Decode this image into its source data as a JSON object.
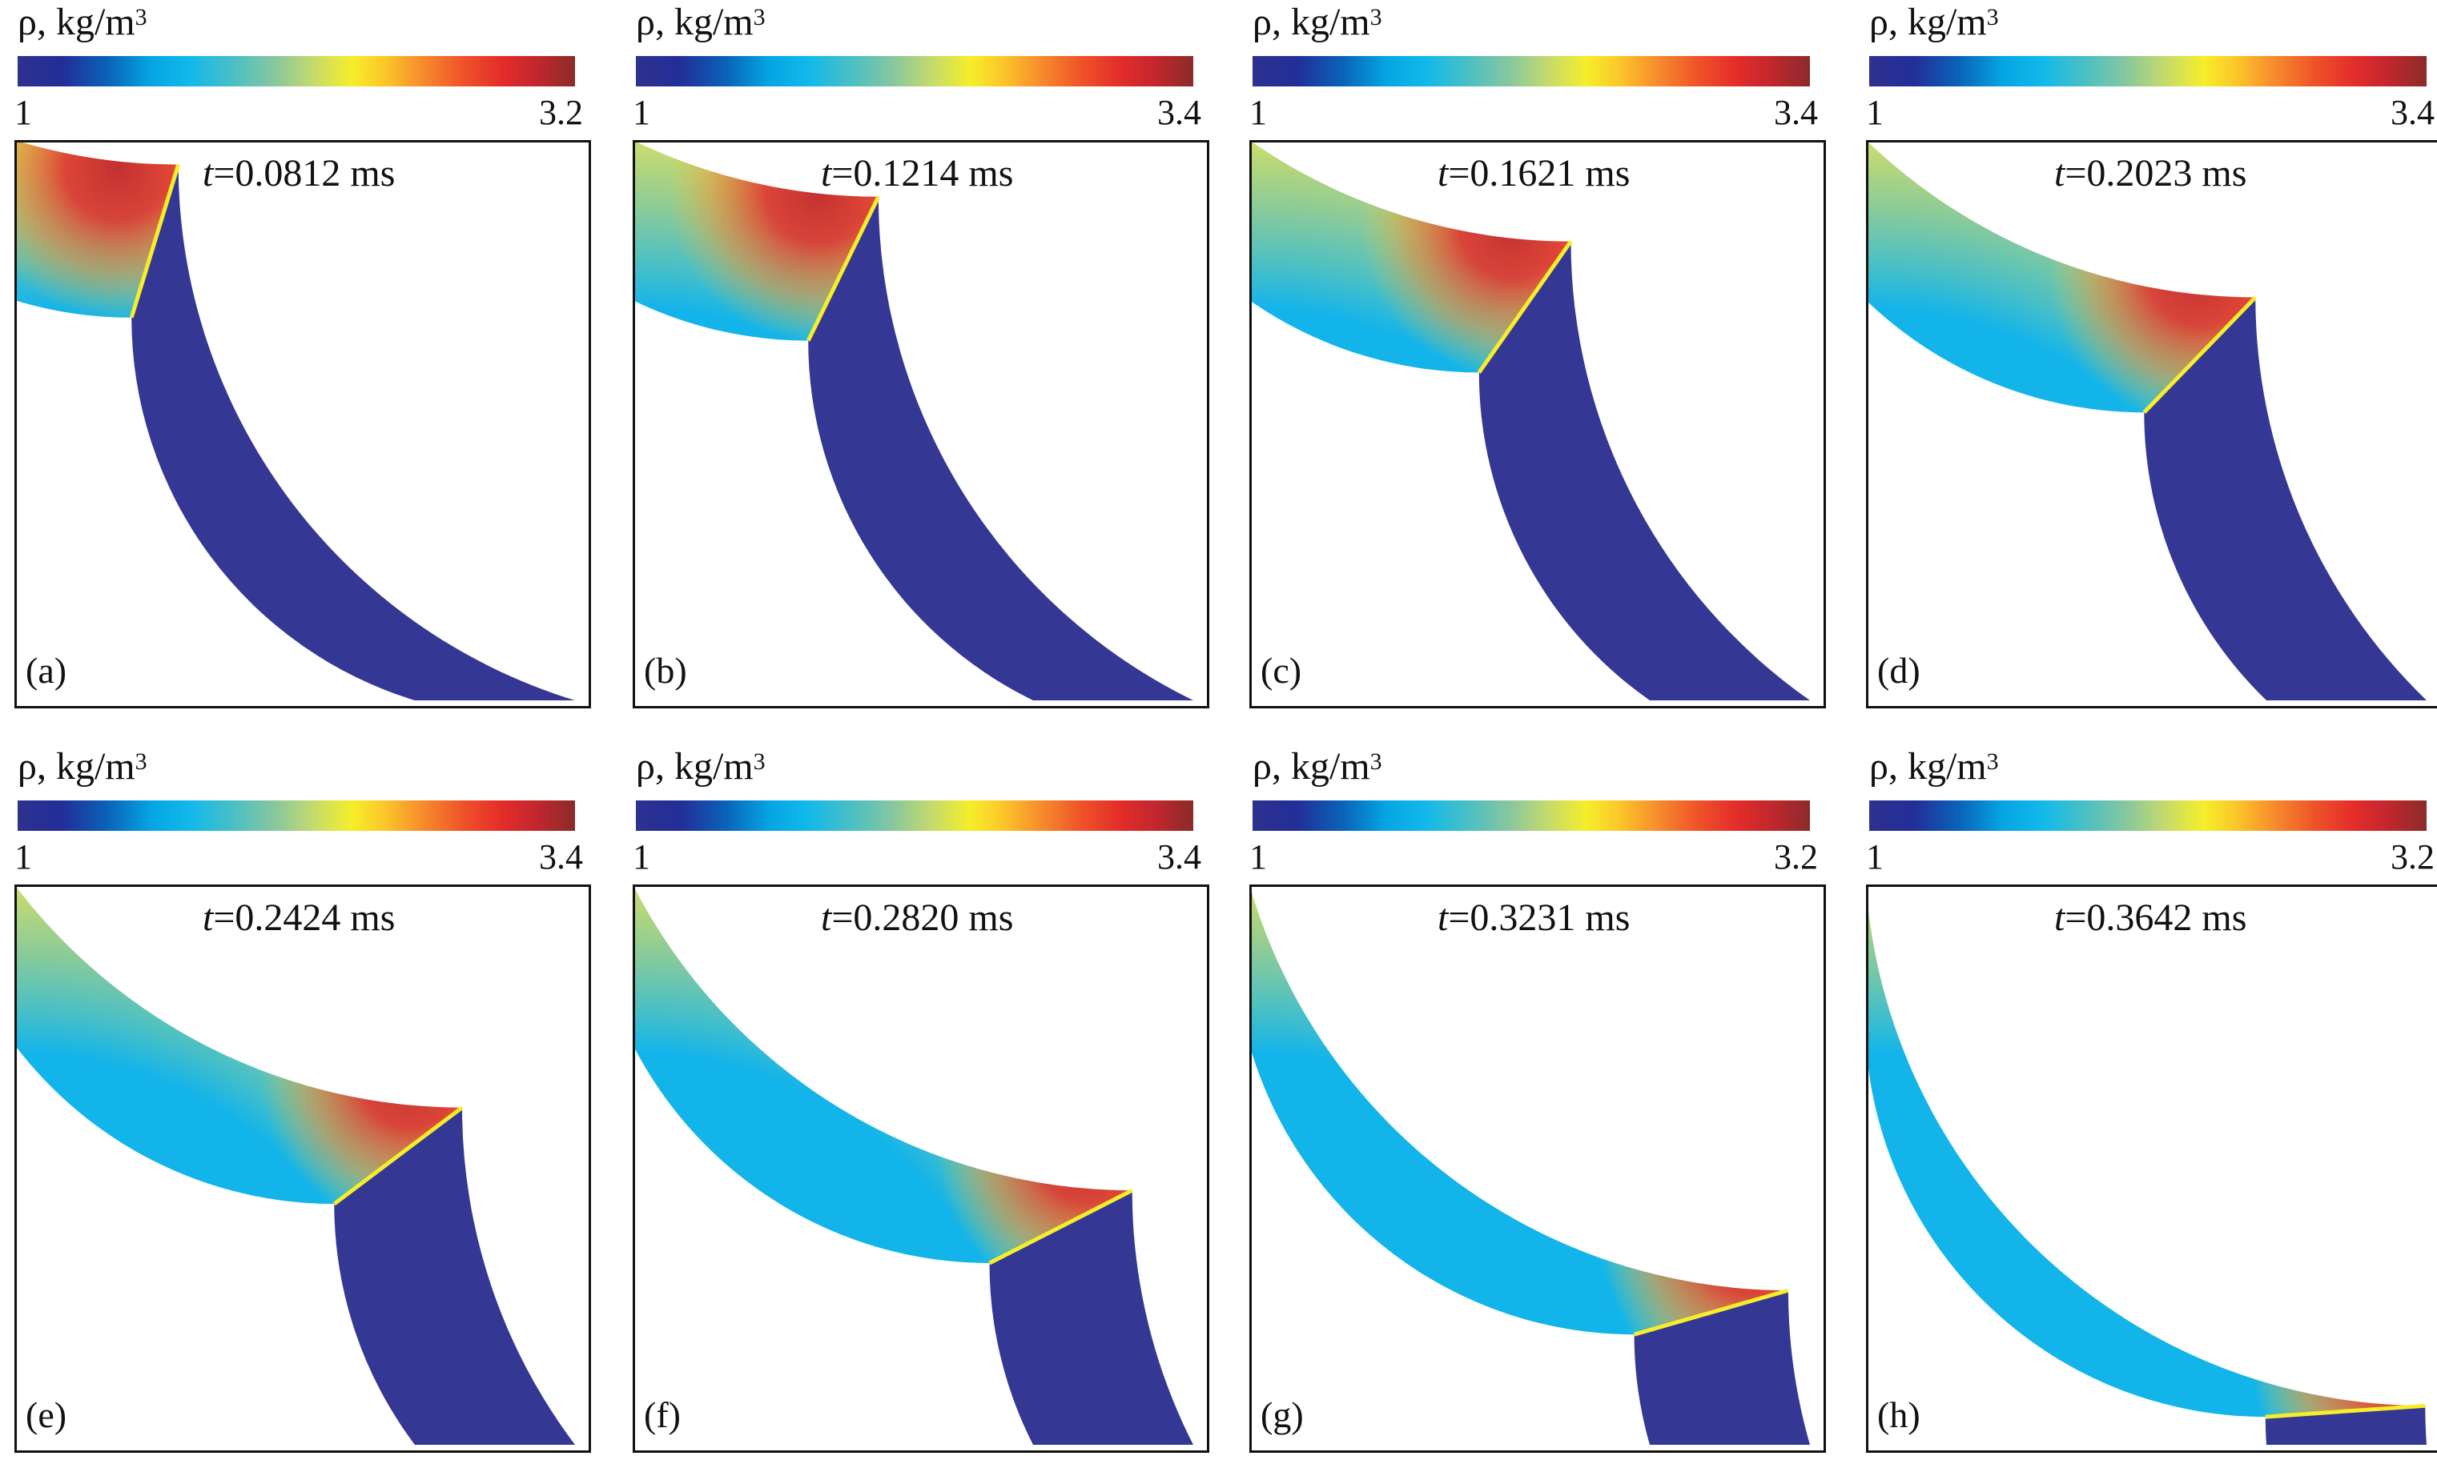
{
  "chart_data": [
    {
      "type": "heatmap",
      "panel": "(a)",
      "time_prefix": "t",
      "time_value": "=0.0812 ms",
      "colorbar": {
        "label": "ρ, kg/m",
        "label_exp": "3",
        "min_label": "1",
        "max_label": "3.2",
        "range": [
          1,
          3.2
        ]
      },
      "shock_angle_deg": 73
    },
    {
      "type": "heatmap",
      "panel": "(b)",
      "time_prefix": "t",
      "time_value": "=0.1214 ms",
      "colorbar": {
        "label": "ρ, kg/m",
        "label_exp": "3",
        "min_label": "1",
        "max_label": "3.4",
        "range": [
          1,
          3.4
        ]
      },
      "shock_angle_deg": 64
    },
    {
      "type": "heatmap",
      "panel": "(c)",
      "time_prefix": "t",
      "time_value": "=0.1621 ms",
      "colorbar": {
        "label": "ρ, kg/m",
        "label_exp": "3",
        "min_label": "1",
        "max_label": "3.4",
        "range": [
          1,
          3.4
        ]
      },
      "shock_angle_deg": 55
    },
    {
      "type": "heatmap",
      "panel": "(d)",
      "time_prefix": "t",
      "time_value": "=0.2023 ms",
      "colorbar": {
        "label": "ρ, kg/m",
        "label_exp": "3",
        "min_label": "1",
        "max_label": "3.4",
        "range": [
          1,
          3.4
        ]
      },
      "shock_angle_deg": 46
    },
    {
      "type": "heatmap",
      "panel": "(e)",
      "time_prefix": "t",
      "time_value": "=0.2424 ms",
      "colorbar": {
        "label": "ρ, kg/m",
        "label_exp": "3",
        "min_label": "1",
        "max_label": "3.4",
        "range": [
          1,
          3.4
        ]
      },
      "shock_angle_deg": 37
    },
    {
      "type": "heatmap",
      "panel": "(f)",
      "time_prefix": "t",
      "time_value": "=0.2820 ms",
      "colorbar": {
        "label": "ρ, kg/m",
        "label_exp": "3",
        "min_label": "1",
        "max_label": "3.4",
        "range": [
          1,
          3.4
        ]
      },
      "shock_angle_deg": 27
    },
    {
      "type": "heatmap",
      "panel": "(g)",
      "time_prefix": "t",
      "time_value": "=0.3231 ms",
      "colorbar": {
        "label": "ρ, kg/m",
        "label_exp": "3",
        "min_label": "1",
        "max_label": "3.2",
        "range": [
          1,
          3.2
        ]
      },
      "shock_angle_deg": 16
    },
    {
      "type": "heatmap",
      "panel": "(h)",
      "time_prefix": "t",
      "time_value": "=0.3642 ms",
      "colorbar": {
        "label": "ρ, kg/m",
        "label_exp": "3",
        "min_label": "1",
        "max_label": "3.2",
        "range": [
          1,
          3.2
        ]
      },
      "shock_angle_deg": 4
    }
  ],
  "colors": {
    "colormap": [
      "#2e318f",
      "#222e98",
      "#0a62b8",
      "#05a5e3",
      "#12b9ea",
      "#44bfc7",
      "#86c79f",
      "#c4da6d",
      "#f6ee2a",
      "#fbc52a",
      "#f6892c",
      "#ef5229",
      "#e32c2a",
      "#c2272d",
      "#8b2b2a"
    ],
    "unshocked": "#343794",
    "frame": "#111111"
  }
}
